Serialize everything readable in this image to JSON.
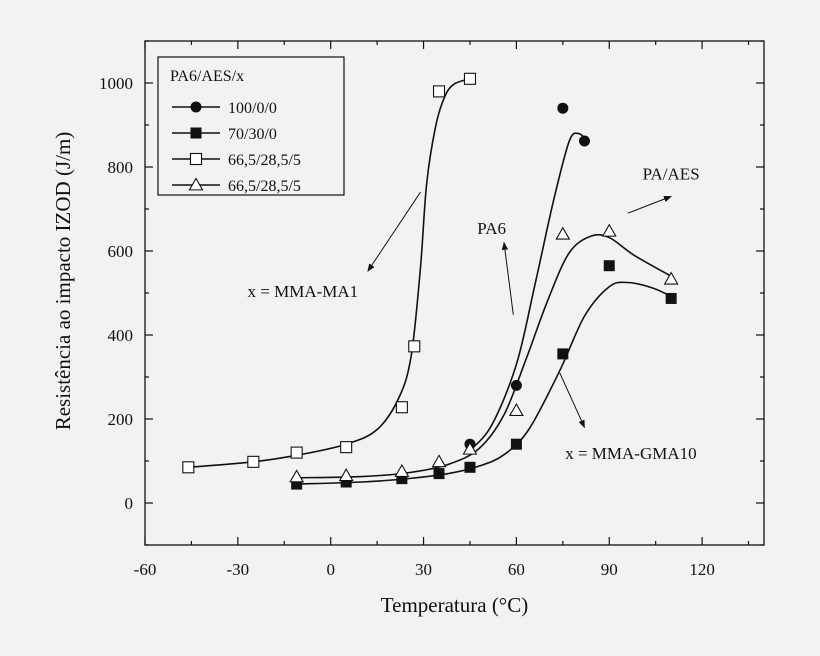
{
  "chart_data": {
    "type": "scatter",
    "xlabel": "Temperatura (°C)",
    "ylabel": "Resistência ao impacto IZOD (J/m)",
    "xlim": [
      -60,
      140
    ],
    "ylim": [
      -100,
      1100
    ],
    "x_ticks": [
      -60,
      -30,
      0,
      30,
      60,
      90,
      120
    ],
    "y_ticks": [
      0,
      200,
      400,
      600,
      800,
      1000
    ],
    "grid": false,
    "legend": {
      "placement": "top-left",
      "title": "PA6/AES/x"
    },
    "series": [
      {
        "name": "100/0/0",
        "marker": "filled-circle",
        "points": [
          [
            45,
            140
          ],
          [
            60,
            280
          ],
          [
            75,
            940
          ],
          [
            82,
            862
          ]
        ],
        "curve": [
          [
            45,
            125
          ],
          [
            52,
            185
          ],
          [
            60,
            330
          ],
          [
            66,
            520
          ],
          [
            72,
            720
          ],
          [
            77,
            860
          ],
          [
            80,
            880
          ],
          [
            83,
            862
          ]
        ]
      },
      {
        "name": "70/30/0",
        "marker": "filled-square",
        "points": [
          [
            -11,
            45
          ],
          [
            5,
            50
          ],
          [
            23,
            58
          ],
          [
            35,
            70
          ],
          [
            45,
            85
          ],
          [
            60,
            140
          ],
          [
            75,
            355
          ],
          [
            90,
            565
          ],
          [
            110,
            487
          ]
        ],
        "curve": [
          [
            -11,
            45
          ],
          [
            10,
            50
          ],
          [
            25,
            58
          ],
          [
            38,
            70
          ],
          [
            48,
            88
          ],
          [
            56,
            115
          ],
          [
            64,
            175
          ],
          [
            74,
            315
          ],
          [
            82,
            445
          ],
          [
            90,
            515
          ],
          [
            96,
            525
          ],
          [
            104,
            512
          ],
          [
            110,
            492
          ]
        ]
      },
      {
        "name": "66,5/28,5/5",
        "marker": "open-square",
        "points": [
          [
            -46,
            85
          ],
          [
            -25,
            98
          ],
          [
            -11,
            120
          ],
          [
            5,
            133
          ],
          [
            23,
            228
          ],
          [
            27,
            373
          ],
          [
            35,
            980
          ],
          [
            45,
            1010
          ]
        ],
        "curve": [
          [
            -46,
            85
          ],
          [
            -25,
            98
          ],
          [
            -10,
            115
          ],
          [
            5,
            140
          ],
          [
            15,
            175
          ],
          [
            22,
            250
          ],
          [
            26,
            350
          ],
          [
            29,
            560
          ],
          [
            31,
            760
          ],
          [
            34,
            900
          ],
          [
            37,
            970
          ],
          [
            40,
            998
          ],
          [
            45,
            1010
          ]
        ]
      },
      {
        "name": "66,5/28,5/5",
        "marker": "open-triangle",
        "points": [
          [
            -11,
            62
          ],
          [
            5,
            65
          ],
          [
            23,
            75
          ],
          [
            35,
            98
          ],
          [
            45,
            128
          ],
          [
            60,
            220
          ],
          [
            75,
            640
          ],
          [
            90,
            647
          ],
          [
            110,
            533
          ]
        ],
        "curve": [
          [
            -11,
            60
          ],
          [
            10,
            63
          ],
          [
            25,
            72
          ],
          [
            38,
            92
          ],
          [
            48,
            130
          ],
          [
            56,
            210
          ],
          [
            63,
            340
          ],
          [
            70,
            480
          ],
          [
            77,
            595
          ],
          [
            84,
            635
          ],
          [
            90,
            632
          ],
          [
            98,
            590
          ],
          [
            110,
            540
          ]
        ]
      }
    ],
    "annotations": [
      {
        "text": "x = MMA-MA1",
        "tx": -9,
        "ty": 490,
        "from": [
          29,
          740
        ],
        "to": [
          12,
          552
        ]
      },
      {
        "text": "PA6",
        "tx": 52,
        "ty": 640,
        "from": [
          59,
          448
        ],
        "to": [
          56,
          620
        ]
      },
      {
        "text": "PA/AES",
        "tx": 110,
        "ty": 770,
        "from": [
          96,
          690
        ],
        "to": [
          110,
          730
        ]
      },
      {
        "text": "x = MMA-GMA10",
        "tx": 97,
        "ty": 105,
        "from": [
          74,
          310
        ],
        "to": [
          82,
          180
        ]
      }
    ]
  }
}
